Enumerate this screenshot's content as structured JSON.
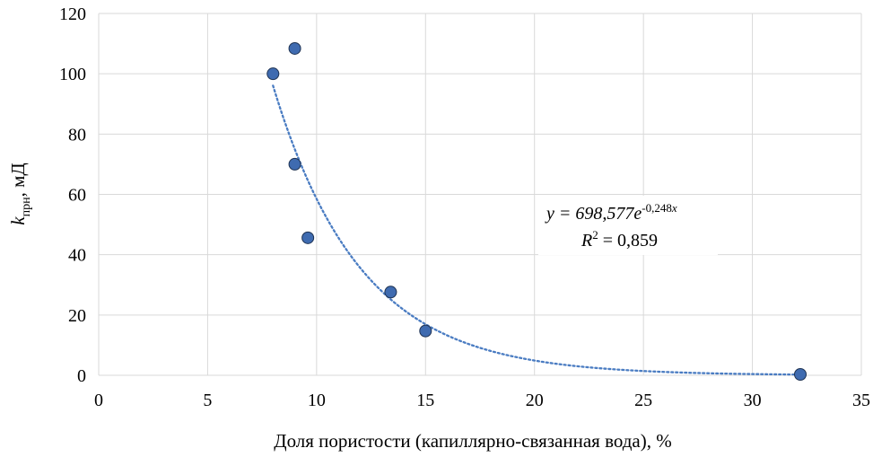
{
  "chart_data": {
    "type": "scatter",
    "xlabel": "Доля пористости (капиллярно-связанная вода), %",
    "ylabel_main": "k",
    "ylabel_sub": "прн",
    "ylabel_rest": ",  мД",
    "xlim": [
      0,
      35
    ],
    "ylim": [
      0,
      120
    ],
    "xticks": [
      0,
      5,
      10,
      15,
      20,
      25,
      30,
      35
    ],
    "yticks": [
      0,
      20,
      40,
      60,
      80,
      100,
      120
    ],
    "grid": true,
    "series": [
      {
        "points": [
          {
            "x": 8.0,
            "y": 100.0
          },
          {
            "x": 9.0,
            "y": 108.4
          },
          {
            "x": 9.0,
            "y": 70.0
          },
          {
            "x": 9.6,
            "y": 45.6
          },
          {
            "x": 13.4,
            "y": 27.6
          },
          {
            "x": 15.0,
            "y": 14.7
          },
          {
            "x": 32.2,
            "y": 0.3
          }
        ]
      }
    ],
    "trendline": {
      "type": "exponential",
      "a": 698.577,
      "b": -0.248,
      "x_range": [
        8.0,
        32.2
      ],
      "equation_prefix": "y = 698,577",
      "equation_base": "e",
      "equation_exponent": "-0,248",
      "equation_exponent_var": "x",
      "r2_label": "R",
      "r2_sup": "2",
      "r2_value": " = 0,859"
    }
  }
}
